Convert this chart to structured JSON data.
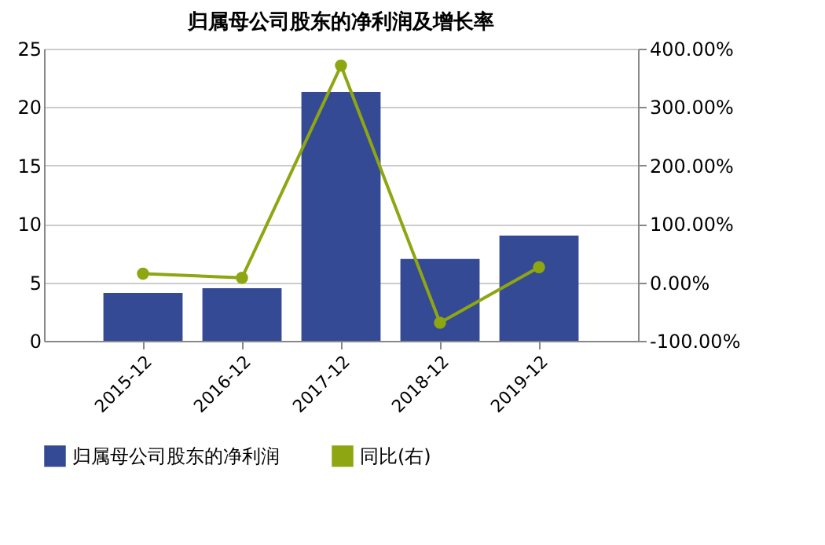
{
  "chart_data": {
    "type": "bar",
    "title": "归属母公司股东的净利润及增长率",
    "categories": [
      "2015-12",
      "2016-12",
      "2017-12",
      "2018-12",
      "2019-12"
    ],
    "series": [
      {
        "name": "归属母公司股东的净利润",
        "color": "#344a94",
        "values": [
          4.1,
          4.5,
          21.3,
          7.0,
          9.0
        ]
      },
      {
        "name": "同比(右)",
        "color": "#8ea611",
        "type": "line",
        "axis": "y2",
        "values": [
          15,
          8,
          371,
          -69,
          26
        ]
      }
    ],
    "ylim": [
      0,
      25
    ],
    "yticks": [
      0,
      5,
      10,
      15,
      20,
      25
    ],
    "y2lim": [
      -100,
      400
    ],
    "y2ticks": [
      {
        "value": -100,
        "label": "-100.00%"
      },
      {
        "value": 0,
        "label": "0.00%"
      },
      {
        "value": 100,
        "label": "100.00%"
      },
      {
        "value": 200,
        "label": "200.00%"
      },
      {
        "value": 300,
        "label": "300.00%"
      },
      {
        "value": 400,
        "label": "400.00%"
      }
    ],
    "grid": "y",
    "legend": "bottom",
    "marker": "circle",
    "line_style": "solid"
  }
}
